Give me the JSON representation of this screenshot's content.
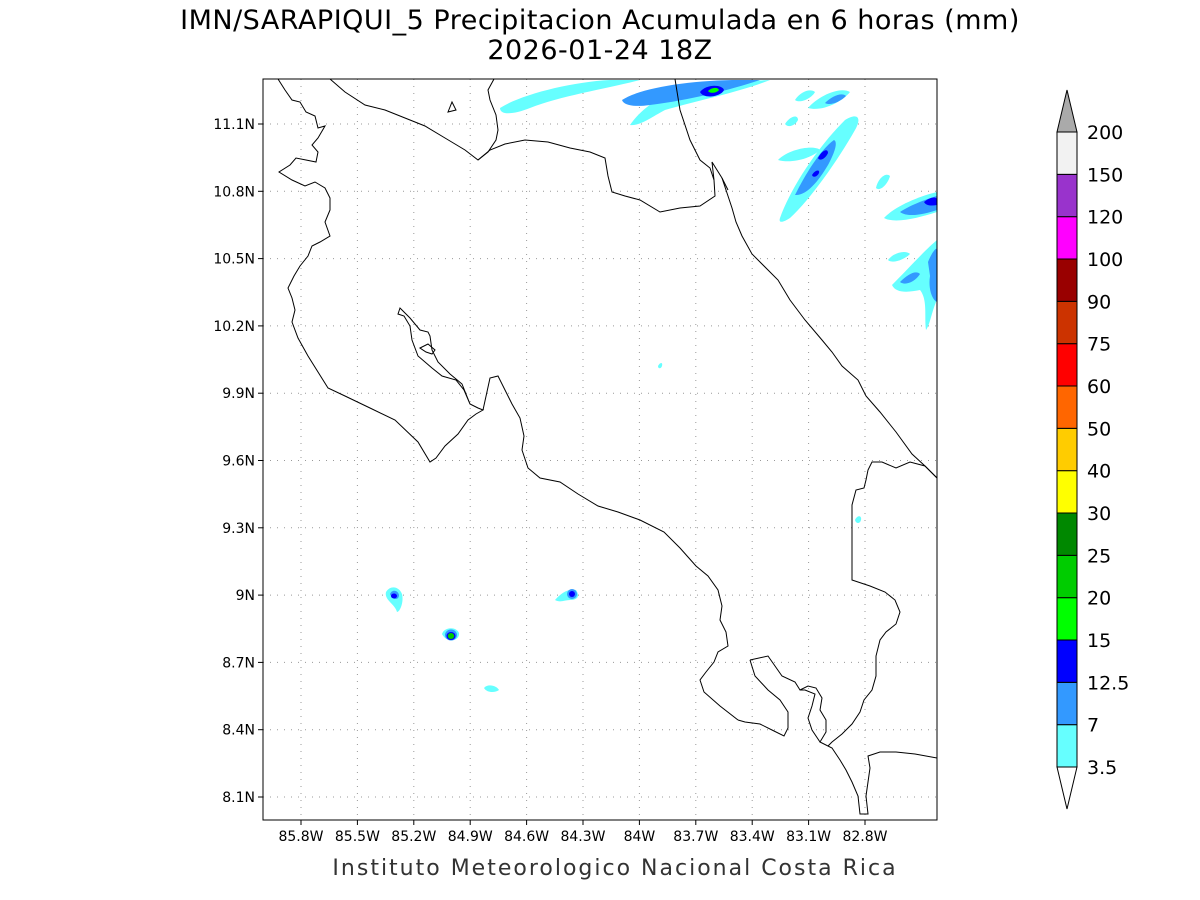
{
  "title": "IMN/SARAPIQUI_5 Precipitacion Acumulada en 6 horas (mm)",
  "subtitle": "2026-01-24 18Z",
  "footer": "Instituto Meteorologico Nacional Costa Rica",
  "lat_ticks": [
    "11.1N",
    "10.8N",
    "10.5N",
    "10.2N",
    "9.9N",
    "9.6N",
    "9.3N",
    "9N",
    "8.7N",
    "8.4N",
    "8.1N"
  ],
  "lon_ticks": [
    "85.8W",
    "85.5W",
    "85.2W",
    "84.9W",
    "84.6W",
    "84.3W",
    "84W",
    "83.7W",
    "83.4W",
    "83.1W",
    "82.8W"
  ],
  "colorbar": {
    "labels": [
      "3.5",
      "7",
      "12.5",
      "15",
      "20",
      "25",
      "30",
      "40",
      "50",
      "60",
      "75",
      "90",
      "100",
      "120",
      "150",
      "200"
    ],
    "colors": [
      "#66ffff",
      "#3399ff",
      "#0000ff",
      "#00ff00",
      "#00cc00",
      "#008800",
      "#ffff00",
      "#ffcc00",
      "#ff6600",
      "#ff0000",
      "#cc3300",
      "#990000",
      "#ff00ff",
      "#9933cc",
      "#f2f2f2"
    ],
    "over_color": "#aaaaaa",
    "under_color": "#ffffff"
  }
}
